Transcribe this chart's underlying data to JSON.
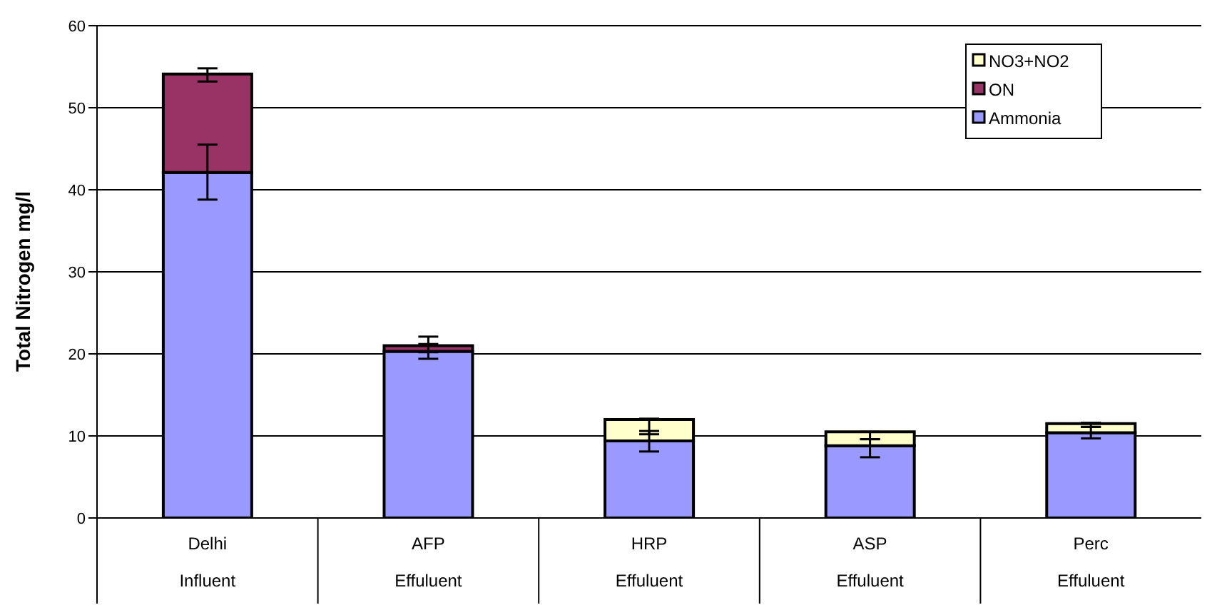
{
  "chart_data": {
    "type": "bar",
    "stacked": true,
    "ylabel": "Total Nitrogen  mg/l",
    "categories": [
      "Delhi\nInfluent",
      "AFP\nEffuluent",
      "HRP\nEffuluent",
      "ASP\nEffuluent",
      "Perc\nEffuluent"
    ],
    "series": [
      {
        "name": "Ammonia",
        "color": "#9999ff",
        "values": [
          42.1,
          20.3,
          9.4,
          8.8,
          10.4
        ],
        "errors": [
          [
            38.8,
            45.5
          ],
          [
            19.4,
            21.2
          ],
          [
            8.1,
            10.6
          ],
          [
            7.4,
            9.6
          ],
          [
            9.7,
            11.1
          ]
        ]
      },
      {
        "name": "ON",
        "color": "#993366",
        "values": [
          12.0,
          0.7,
          0,
          0,
          0
        ],
        "errors": [
          [
            53.2,
            54.8
          ],
          [
            20.2,
            22.1
          ],
          null,
          null,
          null
        ]
      },
      {
        "name": "NO3+NO2",
        "color": "#ffffcc",
        "values": [
          0,
          0,
          2.6,
          1.7,
          1.1
        ],
        "errors": [
          null,
          null,
          [
            10.2,
            12.1
          ],
          [
            9.6,
            10.5
          ],
          [
            11.1,
            11.6
          ]
        ]
      }
    ],
    "ylim": [
      0,
      60
    ],
    "yticks": [
      0,
      10,
      20,
      30,
      40,
      50,
      60
    ],
    "grid": "y",
    "legend": "top right"
  }
}
